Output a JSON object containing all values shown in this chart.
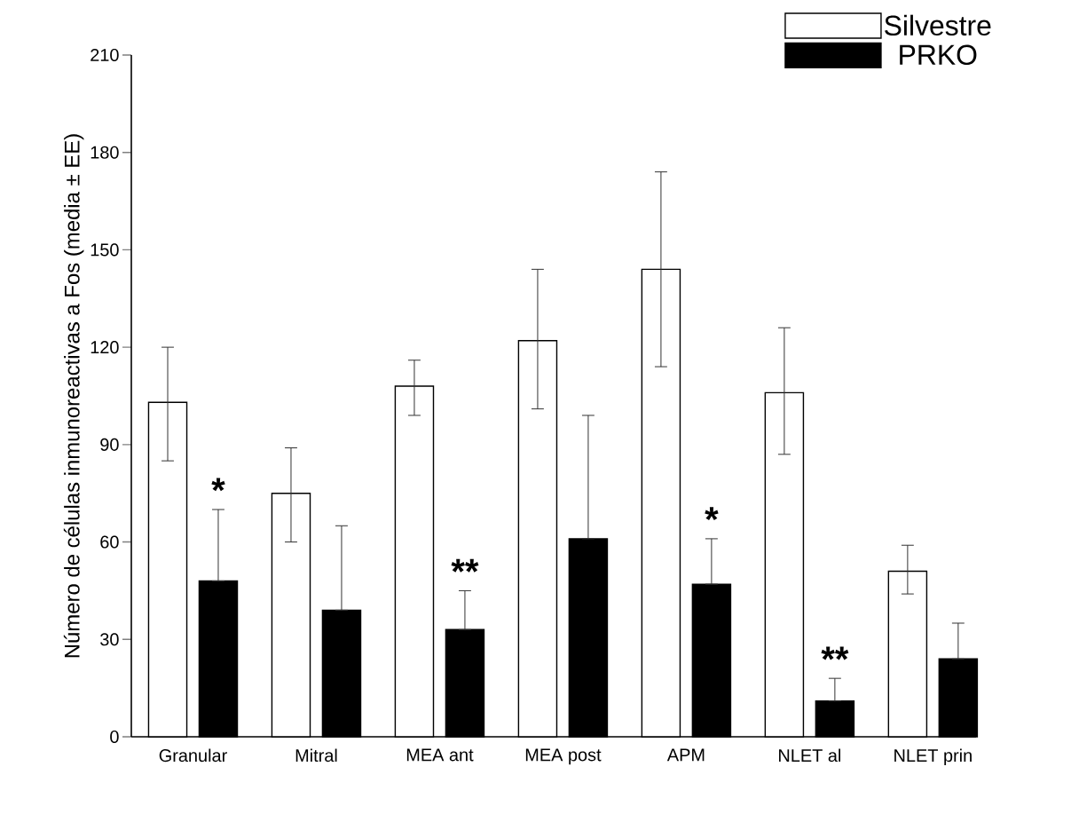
{
  "chart_data": {
    "type": "bar",
    "ylabel": "Número de células inmunoreactivas a Fos (media ± EE)",
    "categories": [
      "Granular",
      "Mitral",
      "MEA ant",
      "MEA post",
      "APM",
      "NLET al",
      "NLET prin"
    ],
    "series": [
      {
        "name": "Silvestre",
        "color": "#ffffff",
        "values": [
          103,
          75,
          108,
          122,
          144,
          106,
          51
        ],
        "errors": [
          [
            85,
            120
          ],
          [
            60,
            89
          ],
          [
            99,
            116
          ],
          [
            101,
            144
          ],
          [
            114,
            174
          ],
          [
            87,
            126
          ],
          [
            44,
            59
          ]
        ]
      },
      {
        "name": "PRKO",
        "color": "#000000",
        "values": [
          48,
          39,
          33,
          61,
          47,
          11,
          24
        ],
        "errors": [
          [
            48,
            70
          ],
          [
            39,
            65
          ],
          [
            33,
            45
          ],
          [
            61,
            99
          ],
          [
            47,
            61
          ],
          [
            11,
            18
          ],
          [
            24,
            35
          ]
        ]
      }
    ],
    "ylim": [
      0,
      210
    ],
    "yticks": [
      0,
      30,
      60,
      90,
      120,
      150,
      180,
      210
    ],
    "legend": "top right",
    "annotations": [
      "*",
      "**",
      "*",
      "**"
    ]
  }
}
